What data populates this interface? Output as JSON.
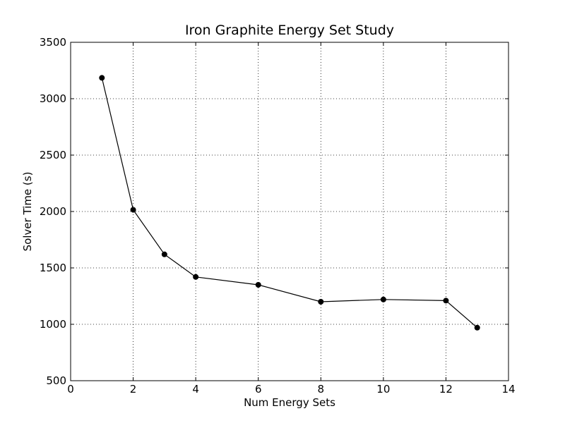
{
  "chart_data": {
    "type": "line",
    "title": "Iron Graphite Energy Set Study",
    "xlabel": "Num Energy Sets",
    "ylabel": "Solver Time (s)",
    "xlim": [
      0,
      14
    ],
    "ylim": [
      500,
      3500
    ],
    "xticks": [
      0,
      2,
      4,
      6,
      8,
      10,
      12,
      14
    ],
    "yticks": [
      500,
      1000,
      1500,
      2000,
      2500,
      3000,
      3500
    ],
    "grid": true,
    "series": [
      {
        "x": [
          1,
          2,
          3,
          4,
          6,
          8,
          10,
          12,
          13
        ],
        "y": [
          3185,
          2015,
          1620,
          1420,
          1350,
          1200,
          1220,
          1210,
          970
        ],
        "color": "#000000",
        "marker": "circle"
      }
    ]
  }
}
